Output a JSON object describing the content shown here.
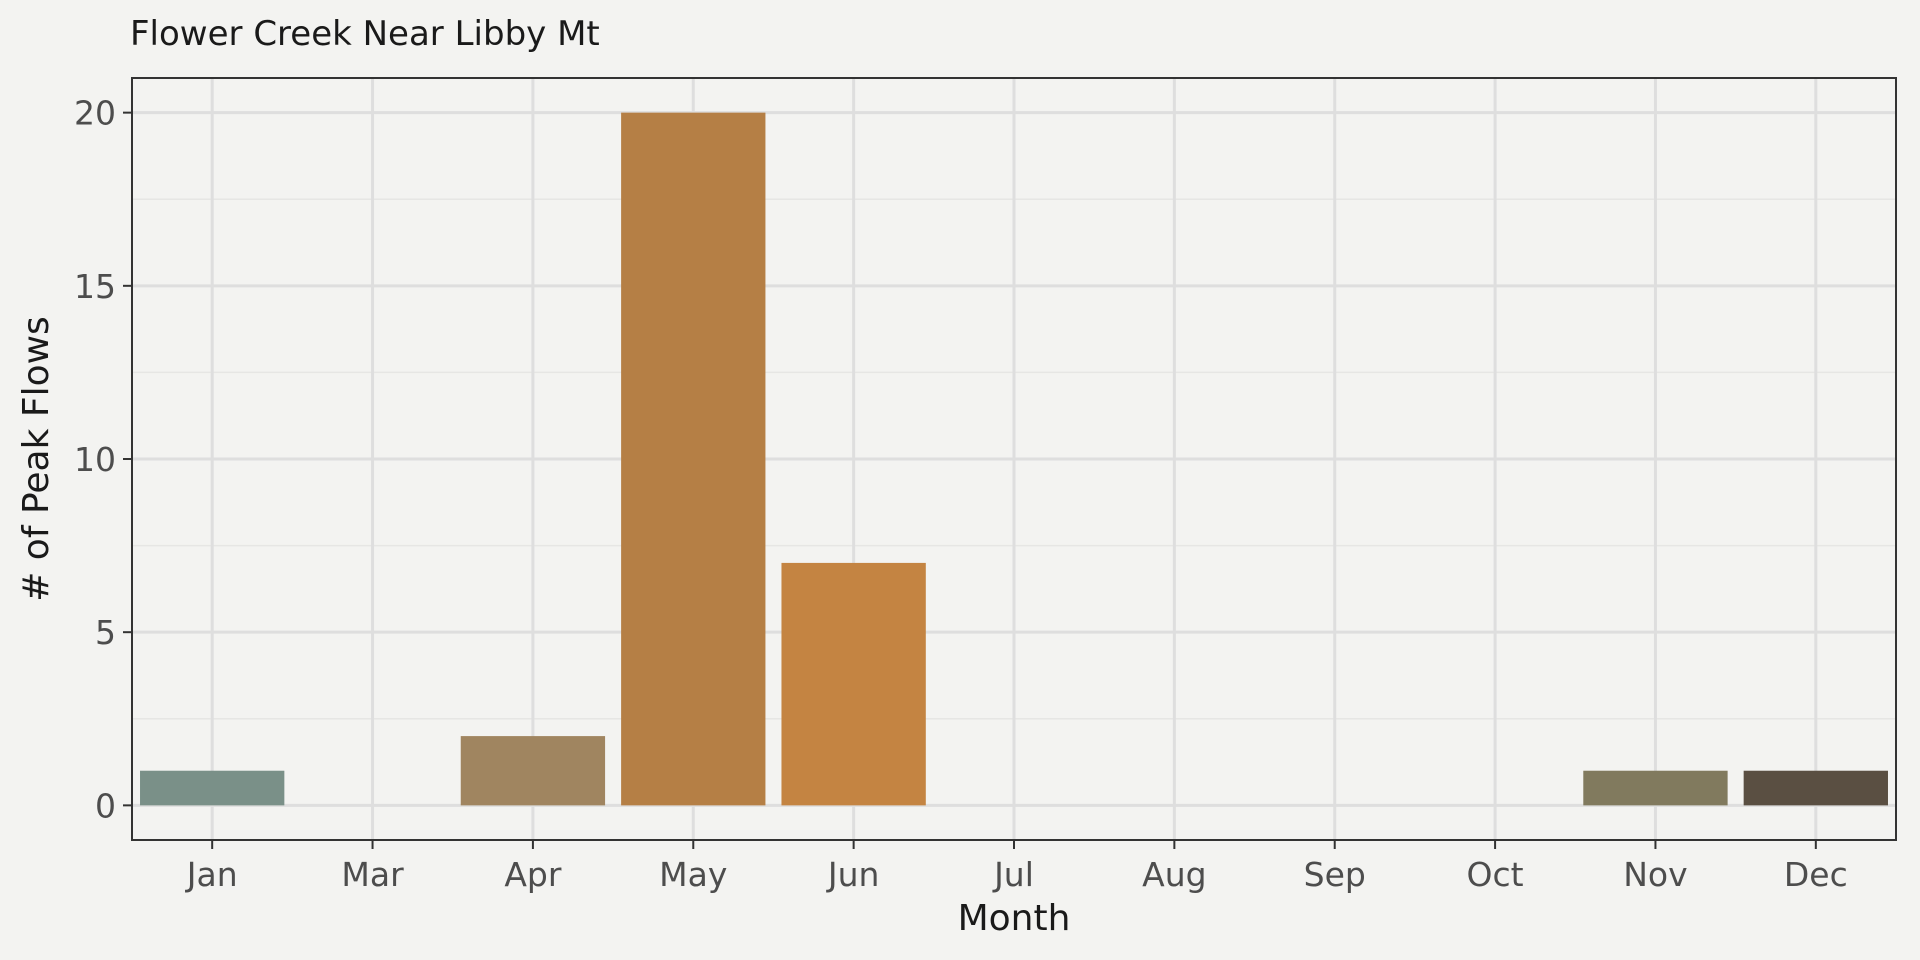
{
  "chart_data": {
    "type": "bar",
    "title": "Flower Creek Near Libby Mt",
    "xlabel": "Month",
    "ylabel": "# of Peak Flows",
    "categories": [
      "Jan",
      "Mar",
      "Apr",
      "May",
      "Jun",
      "Jul",
      "Aug",
      "Sep",
      "Oct",
      "Nov",
      "Dec"
    ],
    "values": [
      1,
      0,
      2,
      20,
      7,
      0,
      0,
      0,
      0,
      1,
      1
    ],
    "colors": [
      "#7a9088",
      "#9a8a68",
      "#a08560",
      "#b57f45",
      "#c48442",
      "#c48442",
      "#c48442",
      "#c48442",
      "#c48442",
      "#817a5e",
      "#5a4f42"
    ],
    "ylim": [
      -1,
      21
    ],
    "yticks": [
      0,
      5,
      10,
      15,
      20
    ],
    "grid": true,
    "legend": "none"
  }
}
